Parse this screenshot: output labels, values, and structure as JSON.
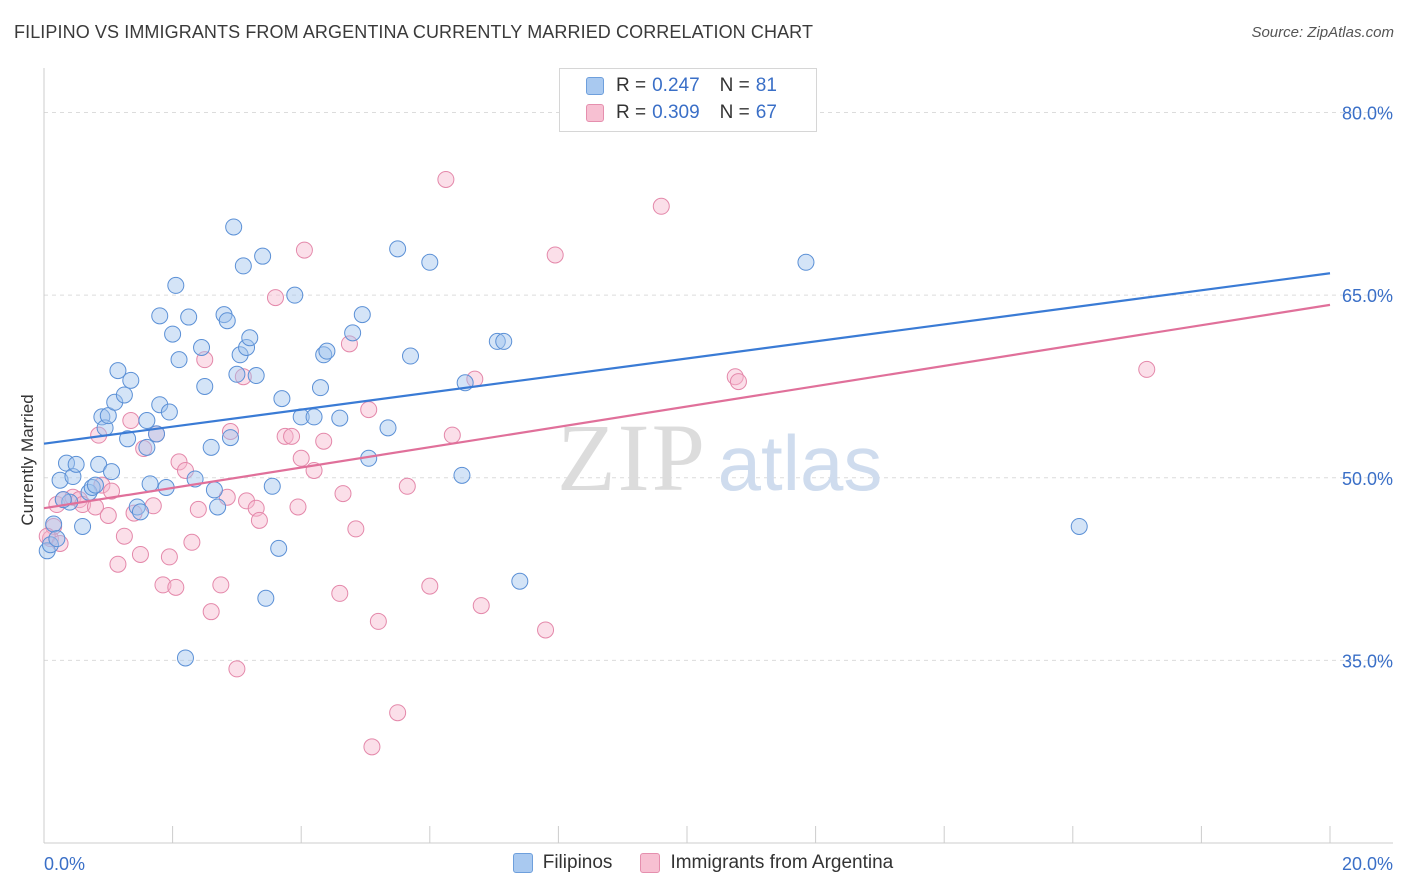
{
  "header": {
    "title": "FILIPINO VS IMMIGRANTS FROM ARGENTINA CURRENTLY MARRIED CORRELATION CHART",
    "source": "Source: ZipAtlas.com"
  },
  "watermark": {
    "zip": "ZIP",
    "atlas": "atlas"
  },
  "legend_top": [
    {
      "r_label": "R =",
      "r_value": "0.247",
      "n_label": "N =",
      "n_value": "81",
      "color": "#a9c9f0",
      "border": "#6e9fdc"
    },
    {
      "r_label": "R =",
      "r_value": "0.309",
      "n_label": "N =",
      "n_value": "67",
      "color": "#f7c0d2",
      "border": "#e58fae"
    }
  ],
  "legend_bottom": [
    {
      "label": "Filipinos",
      "color": "#a9c9f0",
      "border": "#6e9fdc"
    },
    {
      "label": "Immigrants from Argentina",
      "color": "#f7c0d2",
      "border": "#e58fae"
    }
  ],
  "chart_data": {
    "type": "scatter",
    "title": "FILIPINO VS IMMIGRANTS FROM ARGENTINA CURRENTLY MARRIED CORRELATION CHART",
    "xlabel": "",
    "ylabel": "Currently Married",
    "xlim": [
      0,
      20
    ],
    "ylim": [
      20,
      83
    ],
    "x_tick_labels": [
      "0.0%",
      "20.0%"
    ],
    "y_ticks": [
      35,
      50,
      65,
      80
    ],
    "y_tick_labels": [
      "35.0%",
      "50.0%",
      "65.0%",
      "80.0%"
    ],
    "grid": true,
    "colors": {
      "Filipinos": "#3a7bd5",
      "Immigrants from Argentina": "#e0709a",
      "tick_label": "#3a6fc7"
    },
    "series": [
      {
        "name": "Filipinos",
        "regression": {
          "x": [
            0,
            20
          ],
          "y": [
            52.8,
            66.8
          ]
        },
        "points": [
          [
            0.05,
            44.0
          ],
          [
            0.1,
            44.5
          ],
          [
            0.15,
            46.2
          ],
          [
            0.25,
            49.8
          ],
          [
            0.35,
            51.2
          ],
          [
            0.4,
            48.0
          ],
          [
            0.45,
            50.1
          ],
          [
            0.5,
            51.1
          ],
          [
            0.6,
            46.0
          ],
          [
            0.7,
            48.8
          ],
          [
            0.75,
            49.2
          ],
          [
            0.8,
            49.4
          ],
          [
            0.85,
            51.1
          ],
          [
            0.9,
            55.0
          ],
          [
            0.95,
            54.1
          ],
          [
            1.0,
            55.1
          ],
          [
            1.05,
            50.5
          ],
          [
            1.1,
            56.2
          ],
          [
            1.15,
            58.8
          ],
          [
            1.25,
            56.8
          ],
          [
            1.3,
            53.2
          ],
          [
            1.35,
            58.0
          ],
          [
            1.45,
            47.6
          ],
          [
            1.5,
            47.2
          ],
          [
            1.6,
            52.5
          ],
          [
            1.6,
            54.7
          ],
          [
            1.65,
            49.5
          ],
          [
            1.75,
            53.6
          ],
          [
            1.8,
            63.3
          ],
          [
            1.8,
            56.0
          ],
          [
            1.9,
            49.2
          ],
          [
            1.95,
            55.4
          ],
          [
            2.0,
            61.8
          ],
          [
            2.05,
            65.8
          ],
          [
            2.1,
            59.7
          ],
          [
            2.2,
            35.2
          ],
          [
            2.25,
            63.2
          ],
          [
            2.35,
            49.9
          ],
          [
            2.45,
            60.7
          ],
          [
            2.5,
            57.5
          ],
          [
            2.6,
            52.5
          ],
          [
            2.65,
            49.0
          ],
          [
            2.7,
            47.6
          ],
          [
            2.8,
            63.4
          ],
          [
            2.85,
            62.9
          ],
          [
            2.9,
            53.3
          ],
          [
            2.95,
            70.6
          ],
          [
            3.0,
            58.5
          ],
          [
            3.05,
            60.1
          ],
          [
            3.1,
            67.4
          ],
          [
            3.15,
            60.7
          ],
          [
            3.2,
            61.5
          ],
          [
            3.3,
            58.4
          ],
          [
            3.4,
            68.2
          ],
          [
            3.45,
            40.1
          ],
          [
            3.55,
            49.3
          ],
          [
            3.65,
            44.2
          ],
          [
            3.7,
            56.5
          ],
          [
            3.9,
            65.0
          ],
          [
            4.0,
            55.0
          ],
          [
            4.2,
            55.0
          ],
          [
            4.3,
            57.4
          ],
          [
            4.35,
            60.1
          ],
          [
            4.4,
            60.4
          ],
          [
            4.6,
            54.9
          ],
          [
            4.8,
            61.9
          ],
          [
            4.95,
            63.4
          ],
          [
            5.05,
            51.6
          ],
          [
            5.35,
            54.1
          ],
          [
            5.5,
            68.8
          ],
          [
            5.7,
            60.0
          ],
          [
            6.0,
            67.7
          ],
          [
            6.5,
            50.2
          ],
          [
            6.55,
            57.8
          ],
          [
            7.05,
            61.2
          ],
          [
            7.15,
            61.2
          ],
          [
            7.4,
            41.5
          ],
          [
            11.85,
            67.7
          ],
          [
            16.1,
            46.0
          ],
          [
            0.3,
            48.2
          ],
          [
            0.2,
            45.0
          ]
        ]
      },
      {
        "name": "Immigrants from Argentina",
        "regression": {
          "x": [
            0,
            20
          ],
          "y": [
            47.5,
            64.2
          ]
        },
        "points": [
          [
            0.1,
            45.0
          ],
          [
            0.2,
            47.8
          ],
          [
            0.3,
            48.2
          ],
          [
            0.45,
            48.4
          ],
          [
            0.55,
            48.2
          ],
          [
            0.6,
            47.8
          ],
          [
            0.8,
            47.6
          ],
          [
            0.85,
            53.5
          ],
          [
            0.9,
            49.4
          ],
          [
            1.0,
            46.9
          ],
          [
            1.05,
            48.9
          ],
          [
            1.15,
            42.9
          ],
          [
            1.25,
            45.2
          ],
          [
            1.35,
            54.7
          ],
          [
            1.4,
            47.1
          ],
          [
            1.5,
            43.7
          ],
          [
            1.55,
            52.4
          ],
          [
            1.7,
            47.7
          ],
          [
            1.75,
            53.6
          ],
          [
            1.85,
            41.2
          ],
          [
            1.95,
            43.5
          ],
          [
            2.05,
            41.0
          ],
          [
            2.1,
            51.3
          ],
          [
            2.2,
            50.6
          ],
          [
            2.3,
            44.7
          ],
          [
            2.4,
            47.4
          ],
          [
            2.5,
            59.7
          ],
          [
            2.6,
            39.0
          ],
          [
            2.75,
            41.2
          ],
          [
            2.85,
            48.4
          ],
          [
            2.9,
            53.8
          ],
          [
            3.0,
            34.3
          ],
          [
            3.1,
            58.3
          ],
          [
            3.15,
            48.1
          ],
          [
            3.3,
            47.5
          ],
          [
            3.35,
            46.5
          ],
          [
            3.6,
            64.8
          ],
          [
            3.75,
            53.4
          ],
          [
            3.85,
            53.4
          ],
          [
            3.95,
            47.6
          ],
          [
            4.0,
            51.6
          ],
          [
            4.05,
            68.7
          ],
          [
            4.2,
            50.6
          ],
          [
            4.35,
            53.0
          ],
          [
            4.6,
            40.5
          ],
          [
            4.65,
            48.7
          ],
          [
            4.75,
            61.0
          ],
          [
            4.85,
            45.8
          ],
          [
            5.05,
            55.6
          ],
          [
            5.1,
            27.9
          ],
          [
            5.2,
            38.2
          ],
          [
            5.5,
            30.7
          ],
          [
            5.65,
            49.3
          ],
          [
            6.0,
            41.1
          ],
          [
            6.25,
            74.5
          ],
          [
            6.35,
            53.5
          ],
          [
            6.7,
            58.1
          ],
          [
            6.8,
            39.5
          ],
          [
            7.8,
            37.5
          ],
          [
            7.95,
            68.3
          ],
          [
            9.6,
            72.3
          ],
          [
            10.75,
            58.3
          ],
          [
            10.8,
            57.9
          ],
          [
            17.15,
            58.9
          ],
          [
            0.15,
            46.0
          ],
          [
            0.05,
            45.2
          ],
          [
            0.25,
            44.6
          ]
        ]
      }
    ]
  }
}
